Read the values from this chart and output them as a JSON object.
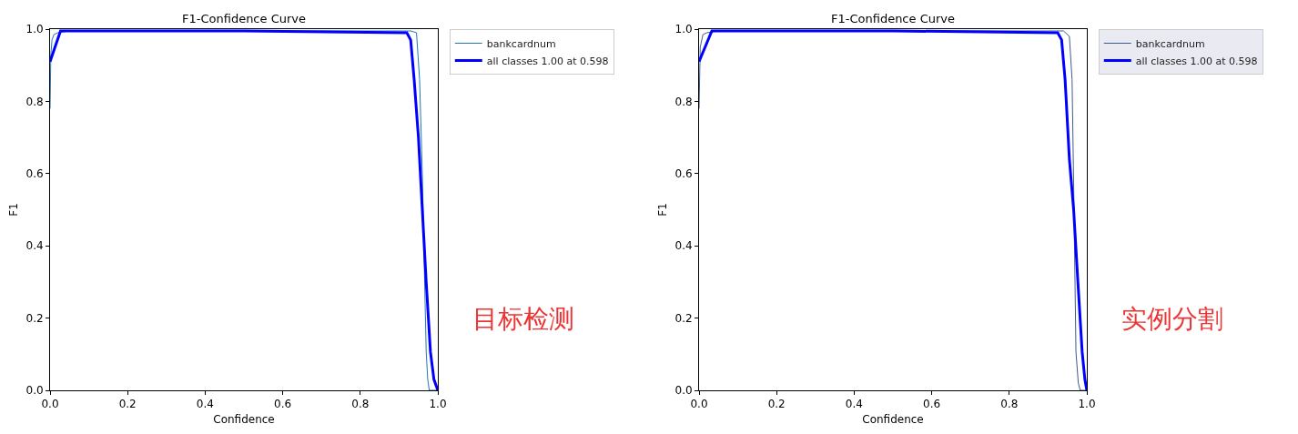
{
  "chart_data": [
    {
      "type": "line",
      "title": "F1-Confidence Curve",
      "xlabel": "Confidence",
      "ylabel": "F1",
      "xlim": [
        0,
        1
      ],
      "ylim": [
        0,
        1
      ],
      "xticks": [
        {
          "value": 0,
          "label": "0.0"
        },
        {
          "value": 0.2,
          "label": "0.2"
        },
        {
          "value": 0.4,
          "label": "0.4"
        },
        {
          "value": 0.6,
          "label": "0.6"
        },
        {
          "value": 0.8,
          "label": "0.8"
        },
        {
          "value": 1,
          "label": "1.0"
        }
      ],
      "yticks": [
        {
          "value": 0,
          "label": "0.0"
        },
        {
          "value": 0.2,
          "label": "0.2"
        },
        {
          "value": 0.4,
          "label": "0.4"
        },
        {
          "value": 0.6,
          "label": "0.6"
        },
        {
          "value": 0.8,
          "label": "0.8"
        },
        {
          "value": 1,
          "label": "1.0"
        }
      ],
      "grid": false,
      "legend": "top right",
      "annotations": [
        "目标检测"
      ],
      "series": [
        {
          "name": "bankcardnum",
          "color": "#1f77b4",
          "x": [
            0,
            0.002,
            0.005,
            0.01,
            0.02,
            0.05,
            0.5,
            0.93,
            0.945,
            0.953,
            0.96,
            0.965,
            0.97,
            0.974,
            0.978,
            1
          ],
          "values": [
            0.78,
            0.93,
            0.97,
            0.985,
            0.99,
            0.995,
            0.995,
            0.995,
            0.99,
            0.86,
            0.6,
            0.35,
            0.106,
            0.03,
            0,
            0
          ]
        },
        {
          "name": "all classes 1.00 at 0.598",
          "color": "#0000ff",
          "x": [
            0,
            0.027,
            0.5,
            0.92,
            0.93,
            0.939,
            0.95,
            0.96,
            0.97,
            0.981,
            0.99,
            1
          ],
          "values": [
            0.91,
            0.995,
            0.995,
            0.99,
            0.97,
            0.86,
            0.7,
            0.5,
            0.3,
            0.106,
            0.03,
            0
          ]
        }
      ]
    },
    {
      "type": "line",
      "title": "F1-Confidence Curve",
      "xlabel": "Confidence",
      "ylabel": "F1",
      "xlim": [
        0,
        1
      ],
      "ylim": [
        0,
        1
      ],
      "xticks": [
        {
          "value": 0,
          "label": "0.0"
        },
        {
          "value": 0.2,
          "label": "0.2"
        },
        {
          "value": 0.4,
          "label": "0.4"
        },
        {
          "value": 0.6,
          "label": "0.6"
        },
        {
          "value": 0.8,
          "label": "0.8"
        },
        {
          "value": 1,
          "label": "1.0"
        }
      ],
      "yticks": [
        {
          "value": 0,
          "label": "0.0"
        },
        {
          "value": 0.2,
          "label": "0.2"
        },
        {
          "value": 0.4,
          "label": "0.4"
        },
        {
          "value": 0.6,
          "label": "0.6"
        },
        {
          "value": 0.8,
          "label": "0.8"
        },
        {
          "value": 1,
          "label": "1.0"
        }
      ],
      "grid": false,
      "legend": "top right",
      "annotations": [
        "实例分割"
      ],
      "series": [
        {
          "name": "bankcardnum",
          "color": "#3b5c8c",
          "x": [
            0,
            0.003,
            0.01,
            0.02,
            0.05,
            0.5,
            0.94,
            0.955,
            0.962,
            0.967,
            0.972,
            0.978,
            0.983,
            1
          ],
          "values": [
            0.78,
            0.95,
            0.985,
            0.99,
            0.995,
            0.995,
            0.995,
            0.98,
            0.86,
            0.5,
            0.106,
            0.02,
            0,
            0
          ]
        },
        {
          "name": "all classes 1.00 at 0.598",
          "color": "#0000ff",
          "x": [
            0,
            0.033,
            0.5,
            0.925,
            0.935,
            0.944,
            0.955,
            0.966,
            0.977,
            0.988,
            0.995,
            1
          ],
          "values": [
            0.91,
            0.995,
            0.995,
            0.99,
            0.97,
            0.86,
            0.64,
            0.5,
            0.3,
            0.106,
            0.03,
            0
          ]
        }
      ]
    }
  ]
}
